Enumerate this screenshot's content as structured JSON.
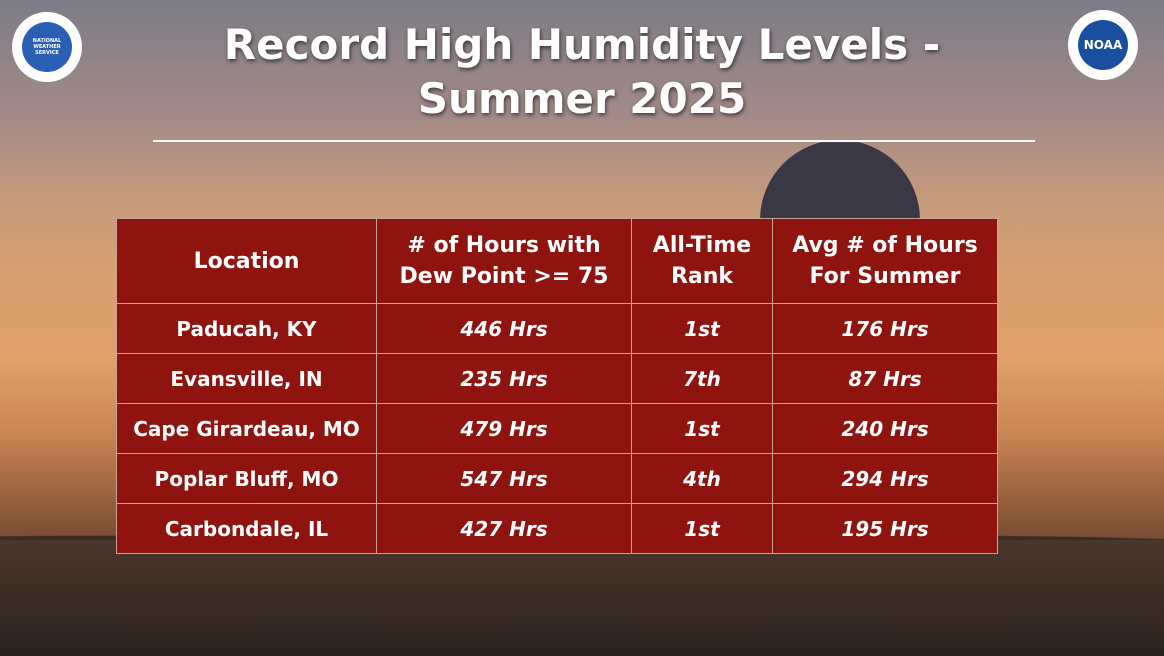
{
  "header": {
    "title_lines": [
      "Record High Humidity Levels -",
      "Summer 2025"
    ]
  },
  "logos": {
    "left": "NATIONAL WEATHER SERVICE",
    "right": "NOAA"
  },
  "table": {
    "columns": [
      "Location",
      "# of Hours with Dew Point >= 75",
      "All-Time Rank",
      "Avg # of Hours For Summer"
    ],
    "rows": [
      [
        "Paducah, KY",
        "446 Hrs",
        "1st",
        "176 Hrs"
      ],
      [
        "Evansville, IN",
        "235 Hrs",
        "7th",
        "87 Hrs"
      ],
      [
        "Cape Girardeau, MO",
        "479 Hrs",
        "1st",
        "240 Hrs"
      ],
      [
        "Poplar Bluff, MO",
        "547 Hrs",
        "4th",
        "294 Hrs"
      ],
      [
        "Carbondale, IL",
        "427 Hrs",
        "1st",
        "195 Hrs"
      ]
    ]
  }
}
